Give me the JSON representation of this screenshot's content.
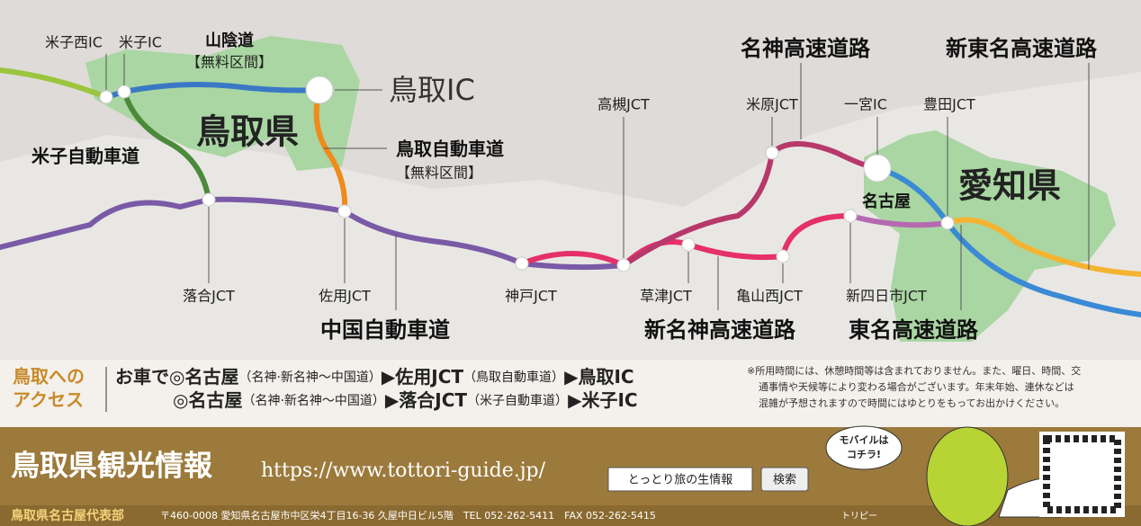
{
  "map": {
    "labels": [
      "米子西IC",
      "米子IC",
      "山陰道",
      "【無料区間】",
      "鳥取IC",
      "鳥取県",
      "米子自動車道",
      "鳥取自動車道",
      "【無料区間】",
      "落合JCT",
      "佐用JCT",
      "中国自動車道",
      "神戸JCT",
      "高槻JCT",
      "草津JCT",
      "亀山西JCT",
      "新名神高速道路",
      "米原JCT",
      "名神高速道路",
      "一宮IC",
      "豊田JCT",
      "新東名高速道路",
      "名古屋",
      "愛知県",
      "新四日市JCT",
      "東名高速道路"
    ]
  },
  "access": {
    "heading": [
      "鳥取への",
      "アクセス"
    ],
    "line1": [
      "お車で◎名古屋",
      "（名神·新名神〜中国道）",
      "▶佐用JCT",
      "（鳥取自動車道）",
      "▶鳥取IC"
    ],
    "line2": [
      "◎名古屋",
      "（名神·新名神〜中国道）",
      "▶落合JCT",
      "（米子自動車道）",
      "▶米子IC"
    ],
    "note": [
      "※所用時間には、休憩時間等は含まれておりません。また、曜日、時間、交",
      "通事情や天候等により変わる場合がございます。年末年始、連休などは",
      "混雑が予想されますので時間にはゆとりをもってお出かけください。"
    ]
  },
  "banner": {
    "title": "鳥取県観光情報",
    "url": "https://www.tottori-guide.jp/",
    "search_text": "とっとり旅の生情報",
    "search_button": "検索",
    "mobile": [
      "モバイルは",
      "コチラ!"
    ],
    "office": "鳥取県名古屋代表部",
    "address": "〒460-0008 愛知県名古屋市中区栄4丁目16-36 久屋中日ビル5階　TEL 052-262-5411　FAX 052-262-5415",
    "mascot": "トリピー"
  }
}
